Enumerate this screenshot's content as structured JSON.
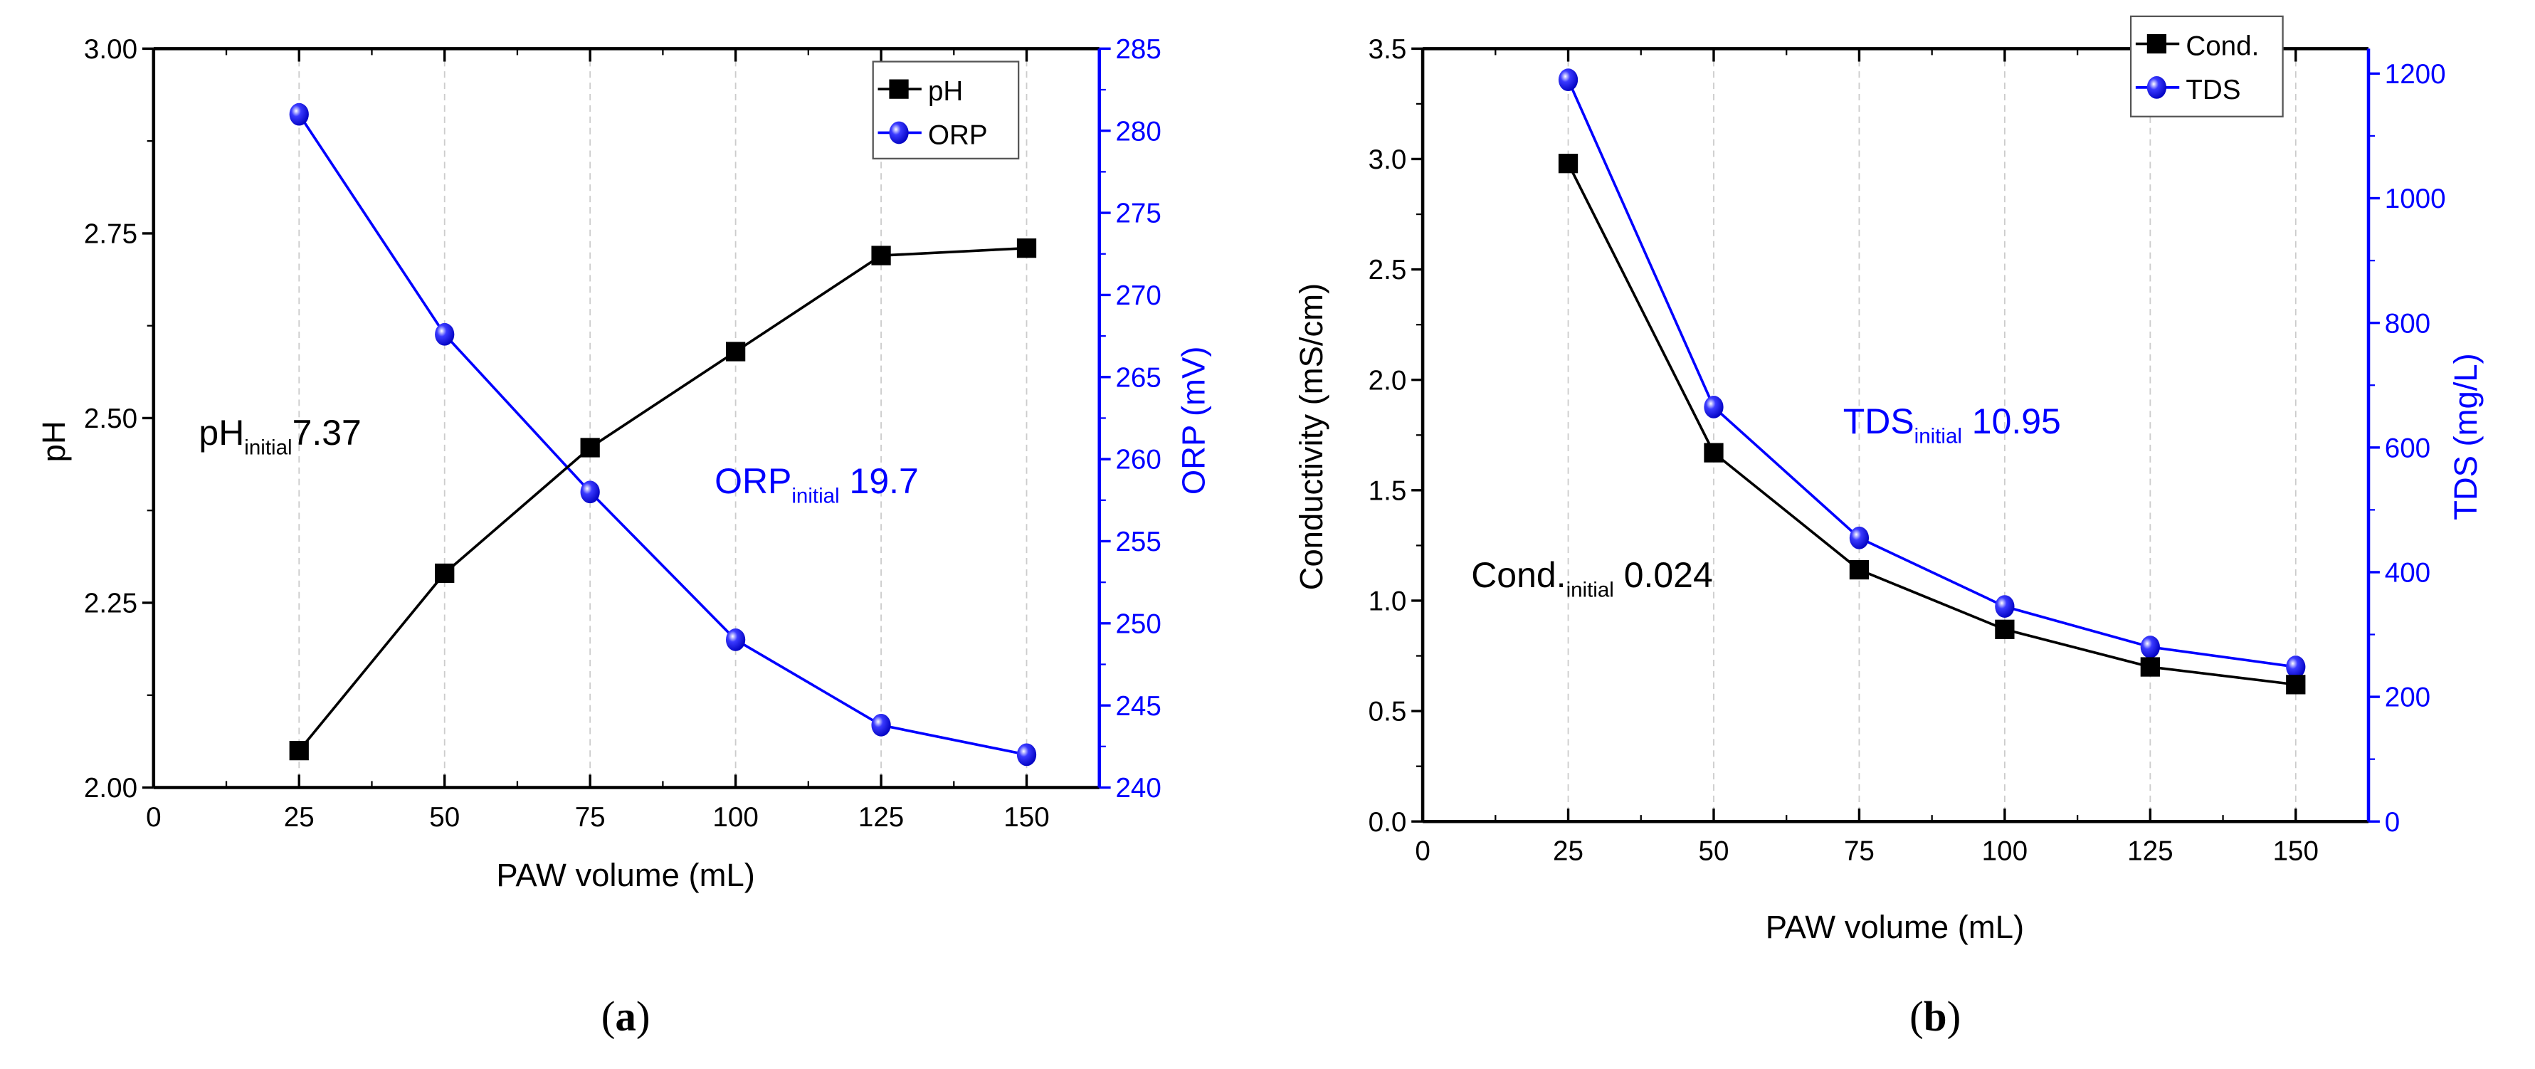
{
  "chart_data": [
    {
      "type": "line",
      "panel_label": "a",
      "xlabel": "PAW volume (mL)",
      "xlim": [
        0,
        162.5
      ],
      "xticks": [
        0,
        25,
        50,
        75,
        100,
        125,
        150
      ],
      "x": [
        25,
        50,
        75,
        100,
        125,
        150
      ],
      "grid": "vertical dashed",
      "legend": "top-right",
      "left_axis": {
        "label": "pH",
        "ylim": [
          2.0,
          3.0
        ],
        "ticks": [
          "2.00",
          "2.25",
          "2.50",
          "2.75",
          "3.00"
        ],
        "color": "#000000"
      },
      "right_axis": {
        "label": "ORP (mV)",
        "ylim": [
          240,
          285
        ],
        "ticks": [
          "240",
          "245",
          "250",
          "255",
          "260",
          "265",
          "270",
          "275",
          "280",
          "285"
        ],
        "color": "#0000ff"
      },
      "series": [
        {
          "name": "pH",
          "axis": "left",
          "marker": "square",
          "color": "#000000",
          "values": [
            2.05,
            2.29,
            2.46,
            2.59,
            2.72,
            2.73
          ]
        },
        {
          "name": "ORP",
          "axis": "right",
          "marker": "sphere",
          "color": "#0000ff",
          "values": [
            281,
            267.6,
            258,
            249,
            243.8,
            242
          ]
        }
      ],
      "annotations": [
        {
          "main": "pH",
          "sub": "initial",
          "value": "7.37",
          "color": "#000000"
        },
        {
          "main": "ORP",
          "sub": "initial",
          "value": " 19.7",
          "color": "#0000ff"
        }
      ]
    },
    {
      "type": "line",
      "panel_label": "b",
      "xlabel": "PAW volume (mL)",
      "xlim": [
        0,
        162.5
      ],
      "xticks": [
        0,
        25,
        50,
        75,
        100,
        125,
        150
      ],
      "x": [
        25,
        50,
        75,
        100,
        125,
        150
      ],
      "grid": "vertical dashed",
      "legend": "top-right",
      "left_axis": {
        "label": "Conductivity (mS/cm)",
        "ylim": [
          0,
          3.5
        ],
        "ticks": [
          "0.0",
          "0.5",
          "1.0",
          "1.5",
          "2.0",
          "2.5",
          "3.0",
          "3.5"
        ],
        "color": "#000000"
      },
      "right_axis": {
        "label": "TDS (mg/L)",
        "ylim": [
          0,
          1240
        ],
        "ticks": [
          "0",
          "200",
          "400",
          "600",
          "800",
          "1000",
          "1200"
        ],
        "color": "#0000ff"
      },
      "series": [
        {
          "name": "Cond.",
          "axis": "left",
          "marker": "square",
          "color": "#000000",
          "values": [
            2.98,
            1.67,
            1.14,
            0.87,
            0.7,
            0.62
          ]
        },
        {
          "name": "TDS",
          "axis": "right",
          "marker": "sphere",
          "color": "#0000ff",
          "values": [
            1190,
            665,
            455,
            345,
            280,
            248
          ]
        }
      ],
      "annotations": [
        {
          "main": "Cond.",
          "sub": "initial",
          "value": " 0.024",
          "color": "#000000"
        },
        {
          "main": "TDS",
          "sub": "initial",
          "value": " 10.95",
          "color": "#0000ff"
        }
      ]
    }
  ]
}
